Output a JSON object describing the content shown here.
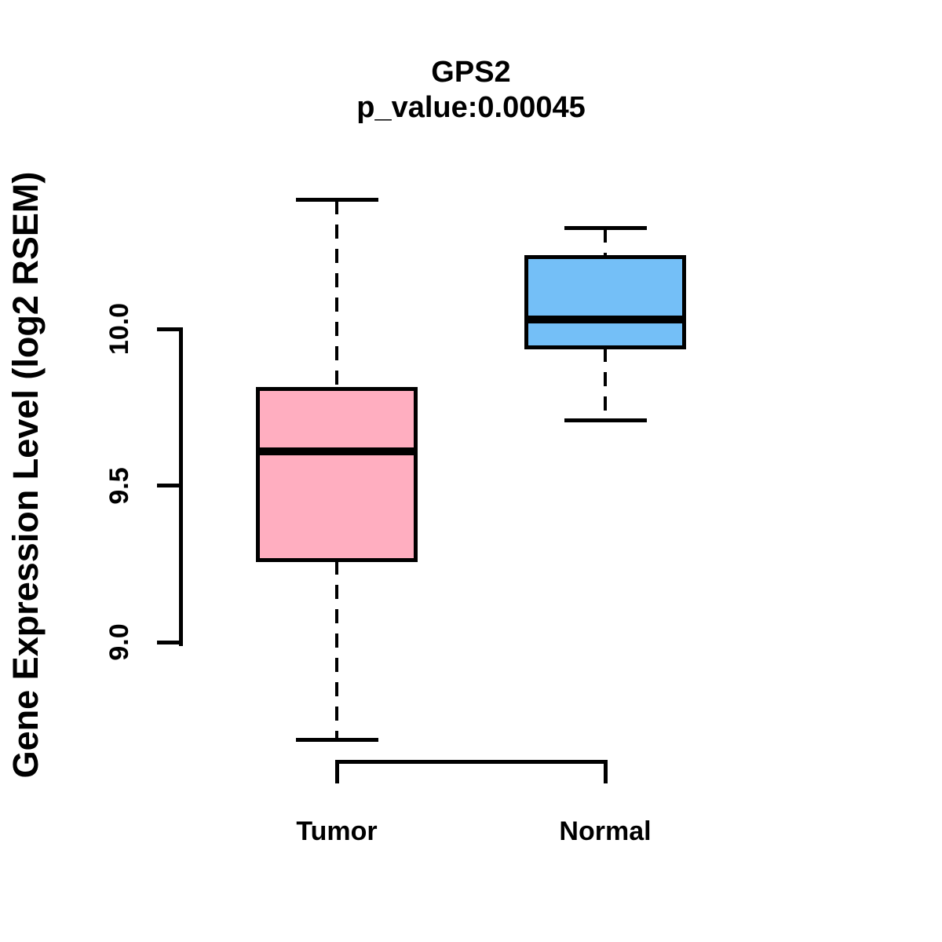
{
  "title": "GPS2",
  "subtitle": "p_value:0.00045",
  "y_axis_label": "Gene Expression Level (log2 RSEM)",
  "colors": {
    "tumor_fill": "#FFAEC0",
    "normal_fill": "#74BFF7",
    "line": "#000000",
    "background": "#FFFFFF"
  },
  "chart_data": {
    "type": "boxplot",
    "title": "GPS2",
    "subtitle": "p_value:0.00045",
    "xlabel": "",
    "ylabel": "Gene Expression Level (log2 RSEM)",
    "categories": [
      "Tumor",
      "Normal"
    ],
    "yticks": [
      9.0,
      9.5,
      10.0
    ],
    "ytick_labels": [
      "9.0",
      "9.5",
      "10.0"
    ],
    "ylim": [
      8.6,
      10.5
    ],
    "grid": false,
    "legend": "none",
    "whisker_style": "dashed",
    "series": [
      {
        "name": "Tumor",
        "lower_whisker": 8.69,
        "q1": 9.26,
        "median": 9.61,
        "q3": 9.81,
        "upper_whisker": 10.41,
        "fill": "#FFAEC0"
      },
      {
        "name": "Normal",
        "lower_whisker": 9.71,
        "q1": 9.94,
        "median": 10.03,
        "q3": 10.23,
        "upper_whisker": 10.32,
        "fill": "#74BFF7"
      }
    ]
  }
}
